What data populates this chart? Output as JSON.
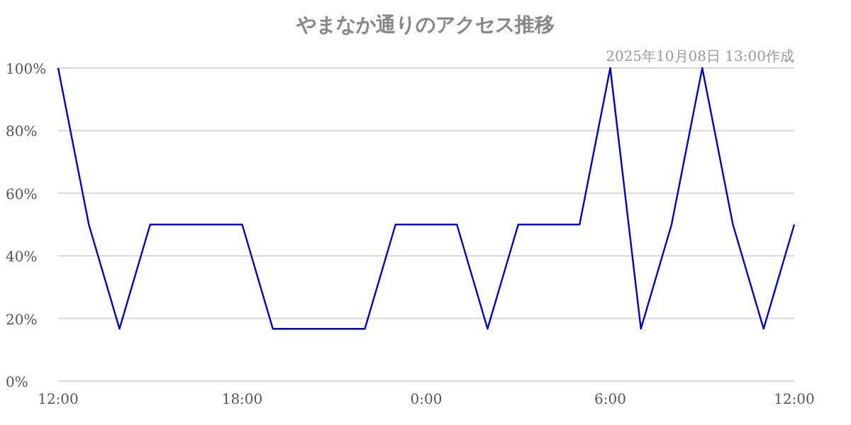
{
  "chart_data": {
    "type": "line",
    "title": "やまなか通りのアクセス推移",
    "annotations": [
      "2025年10月08日 13:00作成"
    ],
    "x": [
      "2025-10-07T12:00",
      "2025-10-07T13:00",
      "2025-10-07T14:00",
      "2025-10-07T15:00",
      "2025-10-07T16:00",
      "2025-10-07T17:00",
      "2025-10-07T18:00",
      "2025-10-07T19:00",
      "2025-10-07T20:00",
      "2025-10-07T21:00",
      "2025-10-07T22:00",
      "2025-10-07T23:00",
      "2025-10-08T00:00",
      "2025-10-08T01:00",
      "2025-10-08T02:00",
      "2025-10-08T03:00",
      "2025-10-08T04:00",
      "2025-10-08T05:00",
      "2025-10-08T06:00",
      "2025-10-08T07:00",
      "2025-10-08T08:00",
      "2025-10-08T09:00",
      "2025-10-08T10:00",
      "2025-10-08T11:00",
      "2025-10-08T12:00"
    ],
    "series": [
      {
        "color": "#0000cc",
        "values": [
          100,
          50,
          16.7,
          50,
          50,
          50,
          50,
          16.7,
          16.7,
          16.7,
          16.7,
          50,
          50,
          50,
          16.7,
          50,
          50,
          50,
          100,
          16.7,
          50,
          100,
          50,
          16.7,
          50
        ]
      }
    ],
    "xlim": [
      "2025-10-07T12:00",
      "2025-10-08T12:00"
    ],
    "xticks": [
      {
        "value": "2025-10-07T12:00",
        "label": "12:00"
      },
      {
        "value": "2025-10-07T18:00",
        "label": "18:00"
      },
      {
        "value": "2025-10-08T00:00",
        "label": "0:00"
      },
      {
        "value": "2025-10-08T06:00",
        "label": "6:00"
      },
      {
        "value": "2025-10-08T12:00",
        "label": "12:00"
      }
    ],
    "ylim": [
      0,
      100
    ],
    "yticks": [
      {
        "value": 0,
        "label": "0%"
      },
      {
        "value": 20,
        "label": "20%"
      },
      {
        "value": 40,
        "label": "40%"
      },
      {
        "value": 60,
        "label": "60%"
      },
      {
        "value": 80,
        "label": "80%"
      },
      {
        "value": 100,
        "label": "100%"
      }
    ],
    "grid": "y",
    "marker": "none",
    "line_style": "solid"
  }
}
